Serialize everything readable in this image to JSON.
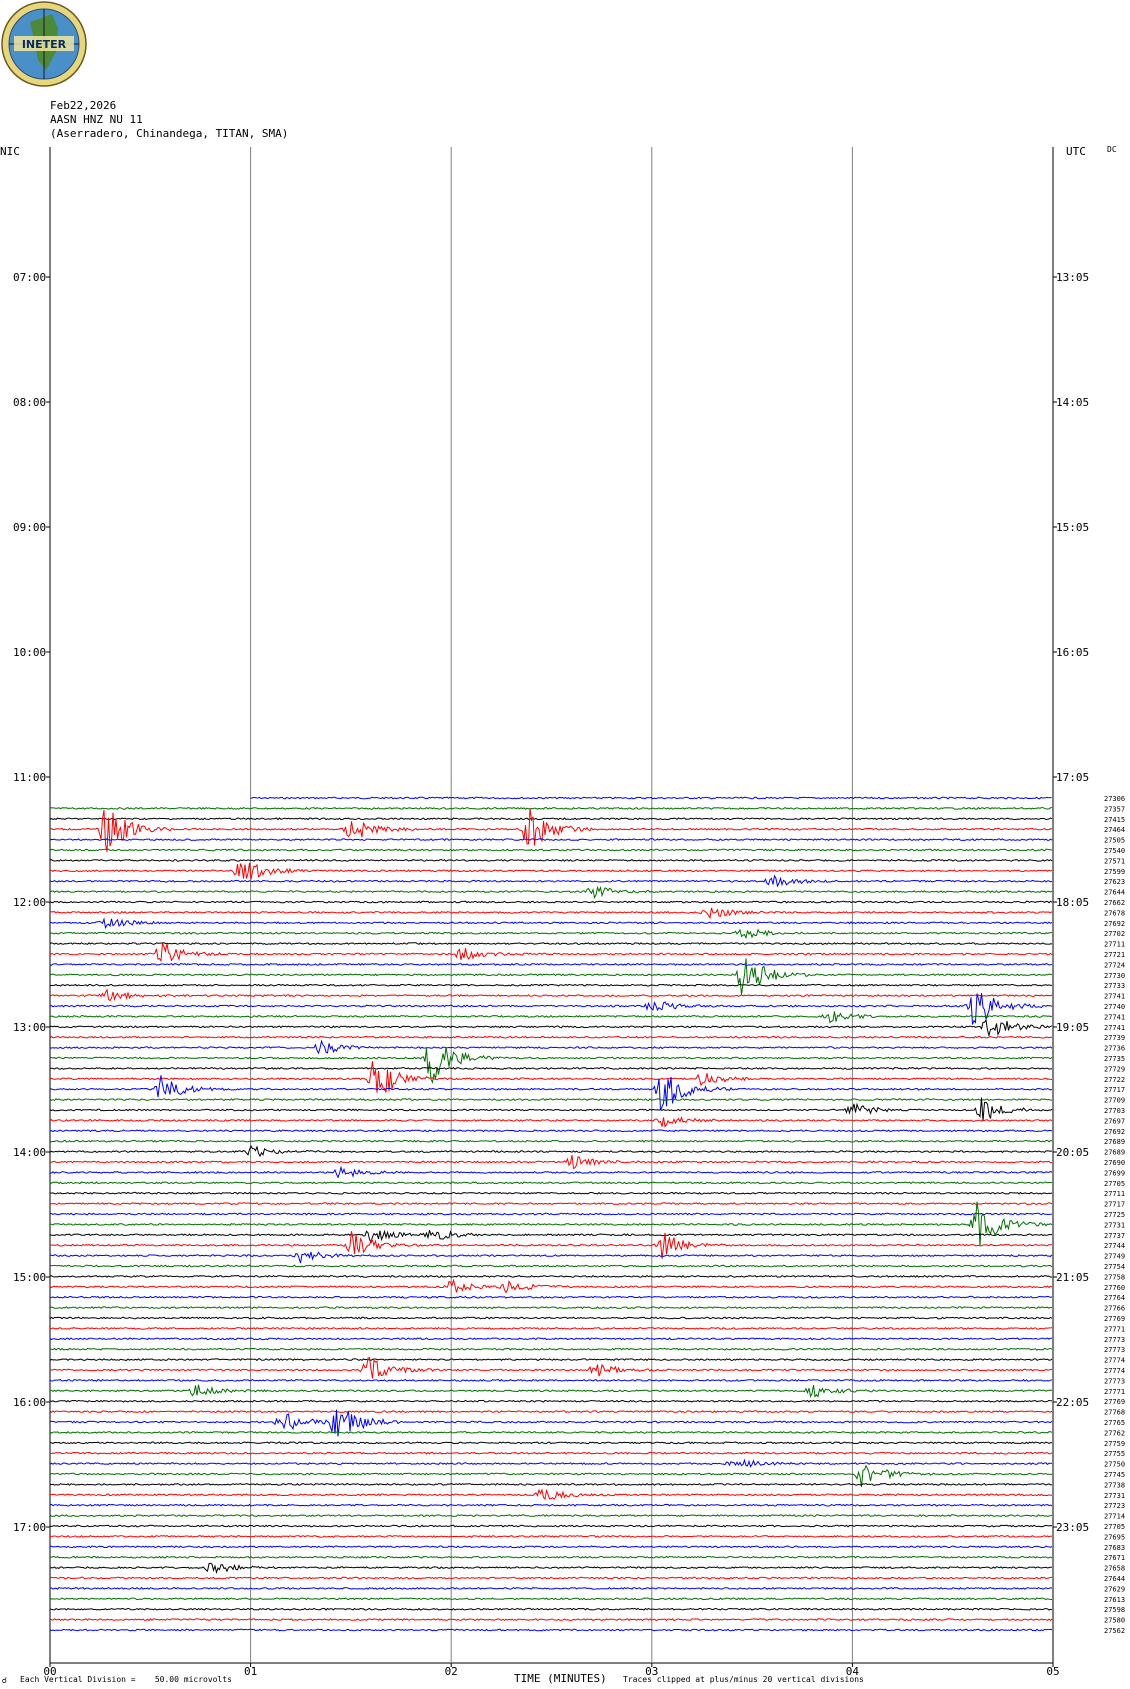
{
  "header": {
    "date": "Feb22,2026",
    "station": "AASN HNZ NU 11",
    "location": "(Aserradero, Chinandega, TITAN, SMA)",
    "logo_text": "INETER"
  },
  "axis_labels": {
    "left_timezone": "NIC",
    "right_timezone": "UTC",
    "dc_label": "DC",
    "xlabel": "TIME (MINUTES)",
    "scale_note": "Each Vertical Division =    50.00 microvolts",
    "clip_note": "Traces clipped at plus/minus 20 vertical divisions",
    "scale_symbol": "☌"
  },
  "colors": {
    "trace_cycle": [
      "#000000",
      "#ff0000",
      "#0000ff",
      "#007000"
    ],
    "gridline": "#808080",
    "logo_outer": "#e8d77a",
    "logo_globe": "#4a90c8",
    "logo_land": "#4c8a3a"
  },
  "chart_data": {
    "type": "line",
    "title": "",
    "x_ticks": [
      "00",
      "01",
      "02",
      "03",
      "04",
      "05"
    ],
    "xlim": [
      0,
      5
    ],
    "left_time_labels": [
      "07:00",
      "08:00",
      "09:00",
      "10:00",
      "11:00",
      "12:00",
      "13:00",
      "14:00",
      "15:00",
      "16:00",
      "17:00"
    ],
    "right_time_labels": [
      "13:05",
      "14:05",
      "15:05",
      "16:05",
      "17:05",
      "18:05",
      "19:05",
      "20:05",
      "21:05",
      "22:05",
      "23:05"
    ],
    "trace_levels": [
      "27306",
      "27357",
      "27415",
      "27464",
      "27505",
      "27540",
      "27571",
      "27599",
      "27623",
      "27644",
      "27662",
      "27678",
      "27692",
      "27702",
      "27711",
      "27721",
      "27724",
      "27730",
      "27733",
      "27741",
      "27740",
      "27741",
      "27741",
      "27739",
      "27736",
      "27735",
      "27729",
      "27722",
      "27717",
      "27709",
      "27703",
      "27697",
      "27692",
      "27689",
      "27689",
      "27690",
      "27699",
      "27705",
      "27711",
      "27717",
      "27725",
      "27731",
      "27737",
      "27744",
      "27749",
      "27754",
      "27758",
      "27760",
      "27764",
      "27766",
      "27769",
      "27771",
      "27773",
      "27773",
      "27774",
      "27774",
      "27773",
      "27771",
      "27769",
      "27768",
      "27765",
      "27762",
      "27759",
      "27755",
      "27750",
      "27745",
      "27738",
      "27731",
      "27723",
      "27714",
      "27705",
      "27695",
      "27683",
      "27671",
      "27658",
      "27644",
      "27629",
      "27613",
      "27598",
      "27580",
      "27562"
    ],
    "events": [
      {
        "trace": 3,
        "minute": 0.28,
        "amplitude": "large"
      },
      {
        "trace": 3,
        "minute": 1.5,
        "amplitude": "medium"
      },
      {
        "trace": 3,
        "minute": 2.38,
        "amplitude": "large"
      },
      {
        "trace": 7,
        "minute": 0.95,
        "amplitude": "medium"
      },
      {
        "trace": 8,
        "minute": 3.6,
        "amplitude": "small"
      },
      {
        "trace": 9,
        "minute": 2.7,
        "amplitude": "small"
      },
      {
        "trace": 11,
        "minute": 3.28,
        "amplitude": "small"
      },
      {
        "trace": 12,
        "minute": 0.27,
        "amplitude": "small"
      },
      {
        "trace": 13,
        "minute": 3.45,
        "amplitude": "small"
      },
      {
        "trace": 15,
        "minute": 0.55,
        "amplitude": "medium"
      },
      {
        "trace": 15,
        "minute": 2.05,
        "amplitude": "small"
      },
      {
        "trace": 17,
        "minute": 3.45,
        "amplitude": "large"
      },
      {
        "trace": 19,
        "minute": 0.28,
        "amplitude": "small"
      },
      {
        "trace": 20,
        "minute": 3.0,
        "amplitude": "small"
      },
      {
        "trace": 20,
        "minute": 4.6,
        "amplitude": "large"
      },
      {
        "trace": 21,
        "minute": 3.88,
        "amplitude": "small"
      },
      {
        "trace": 22,
        "minute": 4.68,
        "amplitude": "medium"
      },
      {
        "trace": 24,
        "minute": 1.35,
        "amplitude": "small"
      },
      {
        "trace": 25,
        "minute": 1.9,
        "amplitude": "large"
      },
      {
        "trace": 27,
        "minute": 1.62,
        "amplitude": "large"
      },
      {
        "trace": 27,
        "minute": 3.25,
        "amplitude": "small"
      },
      {
        "trace": 28,
        "minute": 0.55,
        "amplitude": "medium"
      },
      {
        "trace": 28,
        "minute": 3.05,
        "amplitude": "large"
      },
      {
        "trace": 30,
        "minute": 4.65,
        "amplitude": "medium"
      },
      {
        "trace": 30,
        "minute": 4.0,
        "amplitude": "small"
      },
      {
        "trace": 31,
        "minute": 3.05,
        "amplitude": "small"
      },
      {
        "trace": 34,
        "minute": 1.0,
        "amplitude": "small"
      },
      {
        "trace": 35,
        "minute": 2.6,
        "amplitude": "small"
      },
      {
        "trace": 36,
        "minute": 1.45,
        "amplitude": "small"
      },
      {
        "trace": 41,
        "minute": 4.62,
        "amplitude": "large"
      },
      {
        "trace": 42,
        "minute": 1.6,
        "amplitude": "small"
      },
      {
        "trace": 42,
        "minute": 1.9,
        "amplitude": "small"
      },
      {
        "trace": 43,
        "minute": 1.5,
        "amplitude": "medium"
      },
      {
        "trace": 43,
        "minute": 3.05,
        "amplitude": "medium"
      },
      {
        "trace": 44,
        "minute": 1.25,
        "amplitude": "small"
      },
      {
        "trace": 47,
        "minute": 2.0,
        "amplitude": "small"
      },
      {
        "trace": 47,
        "minute": 2.28,
        "amplitude": "small"
      },
      {
        "trace": 55,
        "minute": 1.58,
        "amplitude": "medium"
      },
      {
        "trace": 55,
        "minute": 2.72,
        "amplitude": "small"
      },
      {
        "trace": 57,
        "minute": 0.72,
        "amplitude": "small"
      },
      {
        "trace": 57,
        "minute": 3.8,
        "amplitude": "small"
      },
      {
        "trace": 60,
        "minute": 1.42,
        "amplitude": "large"
      },
      {
        "trace": 60,
        "minute": 1.15,
        "amplitude": "medium"
      },
      {
        "trace": 64,
        "minute": 3.4,
        "amplitude": "small"
      },
      {
        "trace": 65,
        "minute": 4.05,
        "amplitude": "medium"
      },
      {
        "trace": 67,
        "minute": 2.45,
        "amplitude": "small"
      },
      {
        "trace": 74,
        "minute": 0.8,
        "amplitude": "small"
      }
    ]
  }
}
